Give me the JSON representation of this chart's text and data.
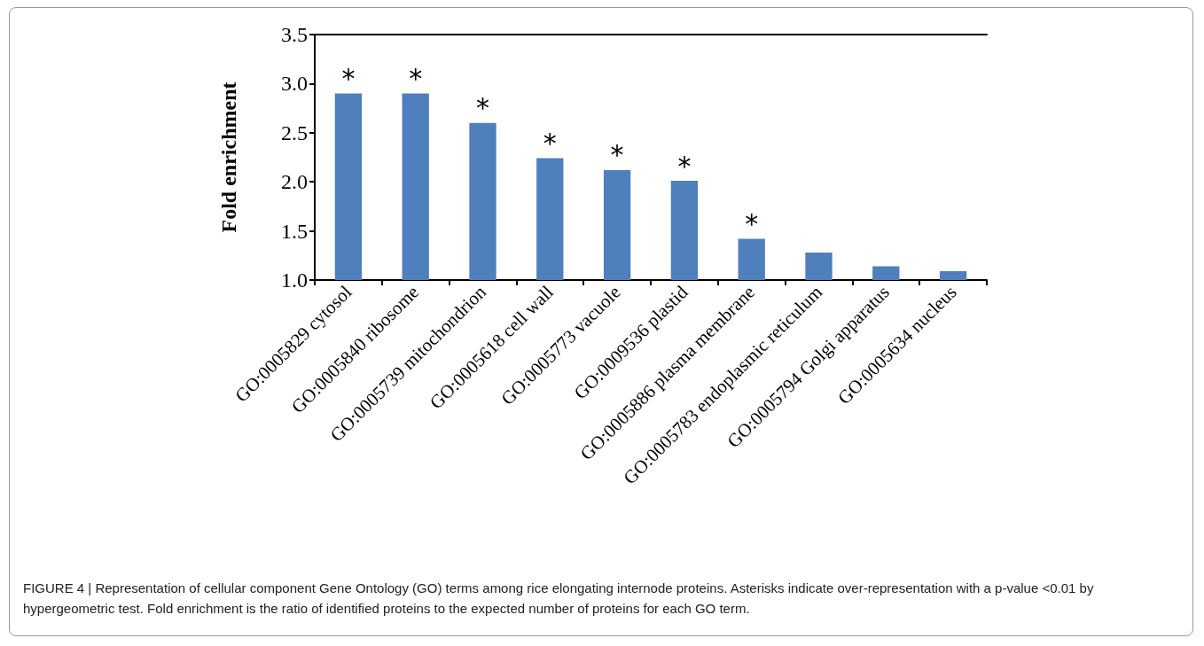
{
  "chart_data": {
    "type": "bar",
    "ylabel": "Fold enrichment",
    "categories": [
      "GO:0005829 cytosol",
      "GO:0005840 ribosome",
      "GO:0005739 mitochondrion",
      "GO:0005618 cell wall",
      "GO:0005773 vacuole",
      "GO:0009536 plastid",
      "GO:0005886 plasma membrane",
      "GO:0005783 endoplasmic reticulum",
      "GO:0005794 Golgi apparatus",
      "GO:0005634 nucleus"
    ],
    "values": [
      2.9,
      2.9,
      2.6,
      2.24,
      2.12,
      2.01,
      1.42,
      1.28,
      1.14,
      1.09
    ],
    "value_labels": [
      "*",
      "*",
      "*",
      "*",
      "*",
      "*",
      "*",
      null,
      null,
      null
    ],
    "color": "#4f7fbd",
    "ylim": [
      1.0,
      3.5
    ],
    "yticks": [
      {
        "value": 1.0,
        "label": "1.0"
      },
      {
        "value": 1.5,
        "label": "1.5"
      },
      {
        "value": 2.0,
        "label": "2.0"
      },
      {
        "value": 2.5,
        "label": "2.5"
      },
      {
        "value": 3.0,
        "label": "3.0"
      },
      {
        "value": 3.5,
        "label": "3.5"
      }
    ],
    "grid": false,
    "annotations": [
      "FIGURE 4 | Representation of cellular component Gene Ontology (GO) terms among rice elongating internode proteins. Asterisks indicate over-representation with a p-value <0.01 by hypergeometric test. Fold enrichment is the ratio of identified proteins to the expected number of proteins for each GO term."
    ]
  }
}
